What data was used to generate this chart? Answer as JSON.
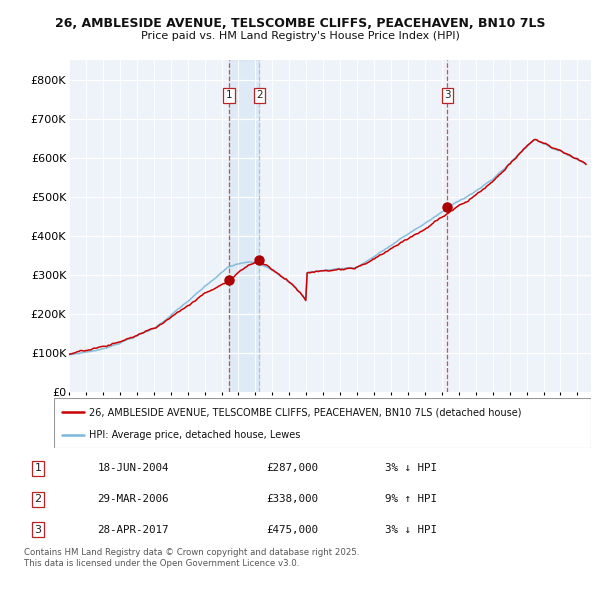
{
  "title1": "26, AMBLESIDE AVENUE, TELSCOMBE CLIFFS, PEACEHAVEN, BN10 7LS",
  "title2": "Price paid vs. HM Land Registry's House Price Index (HPI)",
  "legend_line1": "26, AMBLESIDE AVENUE, TELSCOMBE CLIFFS, PEACEHAVEN, BN10 7LS (detached house)",
  "legend_line2": "HPI: Average price, detached house, Lewes",
  "sale_points": [
    {
      "num": 1,
      "date": "18-JUN-2004",
      "price": 287000,
      "pct": "3%",
      "dir": "↓"
    },
    {
      "num": 2,
      "date": "29-MAR-2006",
      "price": 338000,
      "pct": "9%",
      "dir": "↑"
    },
    {
      "num": 3,
      "date": "28-APR-2017",
      "price": 475000,
      "pct": "3%",
      "dir": "↓"
    }
  ],
  "sale_dates_decimal": [
    2004.46,
    2006.24,
    2017.33
  ],
  "sale_prices": [
    287000,
    338000,
    475000
  ],
  "hpi_color": "#7ab8d9",
  "price_color": "#cc0000",
  "sale_dot_color": "#aa0000",
  "shade_color": "#cce0f0",
  "bg_color": "#eef3fa",
  "footnote": "Contains HM Land Registry data © Crown copyright and database right 2025.\nThis data is licensed under the Open Government Licence v3.0.",
  "ylim": [
    0,
    850000
  ],
  "yticks": [
    0,
    100000,
    200000,
    300000,
    400000,
    500000,
    600000,
    700000,
    800000
  ],
  "ytick_labels": [
    "£0",
    "£100K",
    "£200K",
    "£300K",
    "£400K",
    "£500K",
    "£600K",
    "£700K",
    "£800K"
  ],
  "xlim_start": 1995.0,
  "xlim_end": 2025.8
}
